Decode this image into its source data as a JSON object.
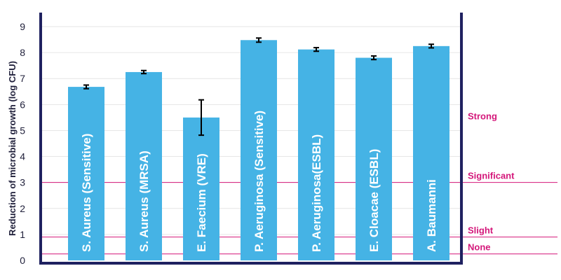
{
  "chart_data": {
    "type": "bar",
    "title": "",
    "xlabel": "",
    "ylabel": "Reduction of microbial growth (log CFU)",
    "ylim": [
      0,
      9.3
    ],
    "yticks": [
      0,
      1,
      2,
      3,
      4,
      5,
      6,
      7,
      8,
      9
    ],
    "grid": true,
    "categories": [
      "S. Aureus (Sensitive)",
      "S. Aureus (MRSA)",
      "E. Faecium (VRE)",
      "P. Aeruginosa (Sensitive)",
      "P. Aeruginosa(ESBL)",
      "E. Cloacae (ESBL)",
      "A. Baumanni"
    ],
    "values": [
      6.68,
      7.25,
      5.5,
      8.48,
      8.12,
      7.8,
      8.25
    ],
    "errors": [
      0.07,
      0.06,
      0.68,
      0.08,
      0.07,
      0.07,
      0.07
    ],
    "thresholds": [
      {
        "label": "Strong",
        "value": 5.3,
        "line": false
      },
      {
        "label": "Significant",
        "value": 3.0,
        "line": true
      },
      {
        "label": "Slight",
        "value": 0.9,
        "line": true
      },
      {
        "label": "None",
        "value": 0.25,
        "line": true
      }
    ],
    "colors": {
      "bar": "#45b3e5",
      "threshold": "#d4177a",
      "axis": "#1f2160",
      "grid": "#e6e6e6",
      "error": "#000000"
    }
  }
}
